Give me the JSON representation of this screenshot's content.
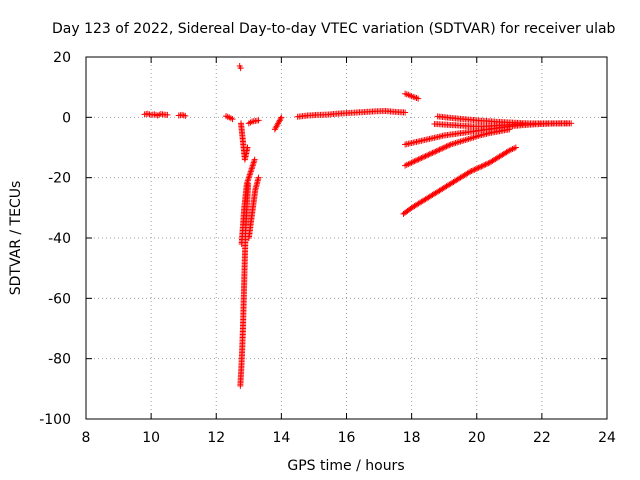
{
  "chart_data": {
    "type": "scatter",
    "title": "Day 123 of 2022, Sidereal Day-to-day VTEC variation (SDTVAR) for receiver ulab",
    "xlabel": "GPS time / hours",
    "ylabel": "SDTVAR / TECUs",
    "xlim": [
      8,
      24
    ],
    "ylim": [
      -100,
      20
    ],
    "xticks": [
      8,
      10,
      12,
      14,
      16,
      18,
      20,
      22,
      24
    ],
    "yticks": [
      -100,
      -80,
      -60,
      -40,
      -20,
      0,
      20
    ],
    "grid": true,
    "marker": "+",
    "color": "#ff0000",
    "segments": [
      {
        "name": "cluster-10h",
        "x": [
          9.8,
          9.9,
          10.0,
          10.1,
          10.2,
          10.3,
          10.4,
          10.5
        ],
        "y": [
          1.0,
          1.2,
          0.8,
          1.0,
          0.6,
          1.1,
          0.9,
          0.8
        ]
      },
      {
        "name": "cluster-11h",
        "x": [
          10.85,
          10.95,
          11.05
        ],
        "y": [
          0.6,
          0.8,
          0.5
        ]
      },
      {
        "name": "pre-drop",
        "x": [
          12.3,
          12.4,
          12.5
        ],
        "y": [
          0.4,
          0.0,
          -0.6
        ]
      },
      {
        "name": "outlier-top",
        "x": [
          12.72,
          12.75
        ],
        "y": [
          17.0,
          16.3
        ]
      },
      {
        "name": "deep-drop",
        "x": [
          12.74,
          12.76,
          12.78,
          12.8,
          12.82,
          12.84,
          12.86,
          12.88,
          12.9,
          12.94,
          12.98
        ],
        "y": [
          -89,
          -85,
          -81,
          -76,
          -70,
          -62,
          -54,
          -46,
          -38,
          -30,
          -22
        ]
      },
      {
        "name": "drop-branch",
        "x": [
          12.78,
          12.82,
          12.86,
          12.9,
          12.94,
          13.0,
          13.06,
          13.12,
          13.18
        ],
        "y": [
          -42,
          -36,
          -30,
          -26,
          -22,
          -20,
          -18,
          -16,
          -14
        ]
      },
      {
        "name": "drop-upper",
        "x": [
          12.76,
          12.8,
          12.84,
          12.88,
          12.92,
          12.96
        ],
        "y": [
          -2,
          -6,
          -10,
          -14,
          -12,
          -10
        ]
      },
      {
        "name": "right-fan",
        "x": [
          13.0,
          13.05,
          13.1,
          13.15,
          13.2,
          13.25,
          13.3
        ],
        "y": [
          -40,
          -36,
          -32,
          -28,
          -24,
          -22,
          -20
        ]
      },
      {
        "name": "recovery",
        "x": [
          13.0,
          13.1,
          13.2,
          13.3
        ],
        "y": [
          -2.0,
          -1.4,
          -1.2,
          -1.0
        ]
      },
      {
        "name": "near-14h",
        "x": [
          13.8,
          13.85,
          13.9,
          13.95,
          14.0
        ],
        "y": [
          -4.0,
          -3.0,
          -2.0,
          -1.0,
          0.0
        ]
      },
      {
        "name": "main-band",
        "x": [
          14.5,
          14.8,
          15.1,
          15.4,
          15.7,
          16.0,
          16.3,
          16.6,
          16.9,
          17.2,
          17.5,
          17.8
        ],
        "y": [
          0.2,
          0.6,
          0.8,
          0.9,
          1.2,
          1.4,
          1.6,
          1.8,
          2.0,
          2.1,
          1.8,
          1.6
        ]
      },
      {
        "name": "top-arc",
        "x": [
          17.8,
          17.9,
          18.0,
          18.1,
          18.2
        ],
        "y": [
          7.8,
          7.5,
          7.0,
          6.6,
          6.2
        ]
      },
      {
        "name": "low-trend",
        "x": [
          17.75,
          18.0,
          18.3,
          18.6,
          18.9,
          19.2,
          19.5,
          19.8,
          20.1,
          20.4,
          20.7,
          21.0,
          21.2
        ],
        "y": [
          -32,
          -30,
          -28,
          -26,
          -24,
          -22,
          -20,
          -18,
          -16.5,
          -15,
          -13,
          -11,
          -10
        ]
      },
      {
        "name": "mid-trend",
        "x": [
          17.8,
          18.0,
          18.3,
          18.6,
          18.9,
          19.2,
          19.5,
          19.8,
          20.1,
          20.4,
          20.7,
          21.0
        ],
        "y": [
          -16,
          -15,
          -13.5,
          -12,
          -10.5,
          -9,
          -8,
          -7,
          -6,
          -5.2,
          -4.6,
          -4.0
        ]
      },
      {
        "name": "upper-trend",
        "x": [
          17.8,
          18.2,
          18.6,
          19.0,
          19.4,
          19.8,
          20.2,
          20.6,
          21.0,
          21.4,
          21.8,
          22.2,
          22.6,
          22.9
        ],
        "y": [
          -9,
          -8,
          -7,
          -6,
          -5.4,
          -4.8,
          -4.2,
          -3.6,
          -3.0,
          -2.6,
          -2.3,
          -2.1,
          -2.0,
          -2.0
        ]
      },
      {
        "name": "top-trend",
        "x": [
          18.8,
          19.2,
          19.6,
          20.0,
          20.4,
          20.8,
          21.2,
          21.6,
          22.0,
          22.4,
          22.8
        ],
        "y": [
          0.3,
          -0.2,
          -0.6,
          -1.0,
          -1.3,
          -1.6,
          -1.8,
          -2.0,
          -2.0,
          -2.0,
          -2.0
        ]
      },
      {
        "name": "band-19h",
        "x": [
          18.7,
          19.0,
          19.3,
          19.6,
          19.9,
          20.2,
          20.5,
          20.8,
          21.1,
          21.4
        ],
        "y": [
          -2.2,
          -2.4,
          -2.6,
          -2.8,
          -3.0,
          -3.0,
          -2.8,
          -2.6,
          -2.4,
          -2.2
        ]
      }
    ]
  }
}
